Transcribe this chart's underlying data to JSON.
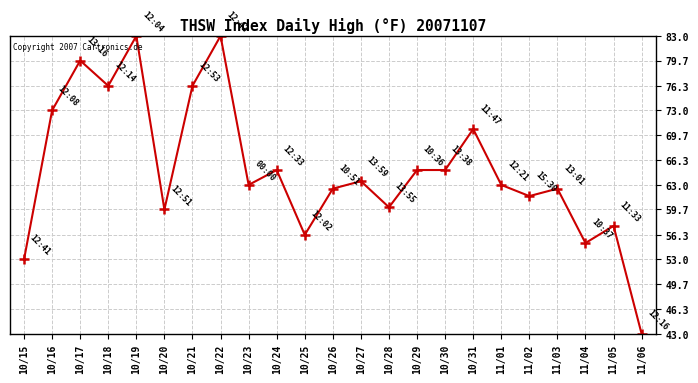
{
  "title": "THSW Index Daily High (°F) 20071107",
  "copyright": "Copyright 2007 Cartronics.de",
  "x_ticks": [
    "10/15",
    "10/16",
    "10/17",
    "10/18",
    "10/19",
    "10/20",
    "10/21",
    "10/22",
    "10/23",
    "10/24",
    "10/25",
    "10/26",
    "10/27",
    "10/28",
    "10/29",
    "10/30",
    "10/31",
    "11/01",
    "11/02",
    "11/03",
    "11/04",
    "11/05",
    "11/06"
  ],
  "y_values": [
    53.0,
    73.0,
    79.7,
    76.3,
    83.0,
    59.7,
    76.3,
    83.0,
    63.0,
    65.0,
    56.3,
    62.5,
    63.5,
    60.0,
    65.0,
    65.0,
    70.5,
    63.0,
    61.5,
    62.5,
    55.2,
    57.5,
    43.0
  ],
  "time_labels": [
    "12:41",
    "12:08",
    "13:16",
    "12:14",
    "12:04",
    "12:51",
    "12:53",
    "12:42",
    "00:00",
    "12:33",
    "12:02",
    "10:51",
    "13:59",
    "13:55",
    "10:36",
    "13:38",
    "11:47",
    "12:21",
    "15:30",
    "13:01",
    "10:37",
    "11:33",
    "12:16"
  ],
  "line_color": "#cc0000",
  "bg_color": "#ffffff",
  "grid_color": "#cccccc",
  "y_ticks": [
    43.0,
    46.3,
    49.7,
    53.0,
    56.3,
    59.7,
    63.0,
    66.3,
    69.7,
    73.0,
    76.3,
    79.7,
    83.0
  ],
  "y_min": 43.0,
  "y_max": 83.0
}
